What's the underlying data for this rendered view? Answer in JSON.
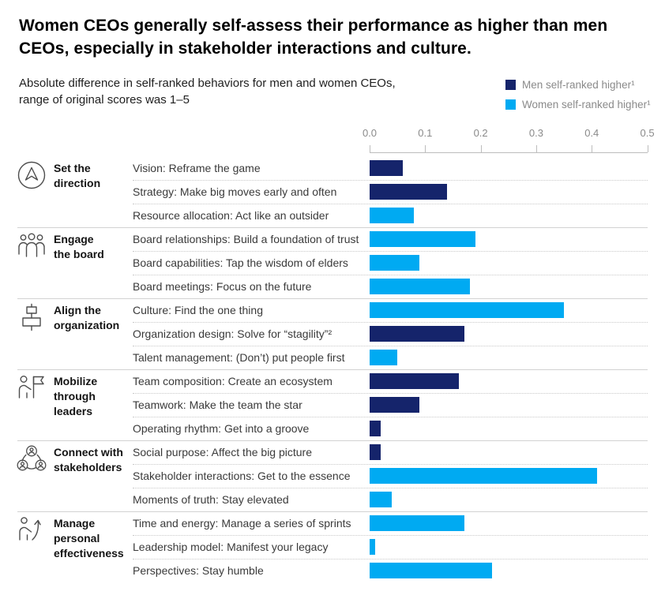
{
  "header": {
    "title": "Women CEOs generally self-assess their performance as higher than men CEOs, especially in stakeholder interactions and culture.",
    "subtitle": "Absolute difference in self-ranked behaviors for men and women CEOs,\nrange of original scores was 1–5"
  },
  "legend": [
    {
      "key": "men",
      "label": "Men self-ranked higher¹",
      "color": "#15246b"
    },
    {
      "key": "women",
      "label": "Women self-ranked higher¹",
      "color": "#00aaf2"
    }
  ],
  "colors": {
    "men": "#15246b",
    "women": "#00aaf2",
    "axis": "#bdbdbd",
    "muted_text": "#8a8a8a"
  },
  "chart_data": {
    "type": "bar",
    "orientation": "horizontal",
    "title": "Women CEOs generally self-assess their performance as higher than men CEOs, especially in stakeholder interactions and culture.",
    "xlabel": "Absolute difference in self-ranked behaviors (original score range 1–5)",
    "ylabel": "",
    "xlim": [
      0.0,
      0.5
    ],
    "x_ticks": [
      "0.0",
      "0.1",
      "0.2",
      "0.3",
      "0.4",
      "0.5"
    ],
    "grid": false,
    "legend_position": "top-right",
    "series_legend": [
      "Men self-ranked higher¹",
      "Women self-ranked higher¹"
    ],
    "groups": [
      {
        "name": "Set the\ndirection",
        "icon": "direction-compass-icon",
        "rows": [
          {
            "label": "Vision: Reframe the game",
            "value": 0.06,
            "series": "men"
          },
          {
            "label": "Strategy: Make big moves early and often",
            "value": 0.14,
            "series": "men"
          },
          {
            "label": "Resource allocation: Act like an outsider",
            "value": 0.08,
            "series": "women"
          }
        ]
      },
      {
        "name": "Engage\nthe board",
        "icon": "board-people-icon",
        "rows": [
          {
            "label": "Board relationships: Build a foundation of trust",
            "value": 0.19,
            "series": "women"
          },
          {
            "label": "Board capabilities: Tap the wisdom of elders",
            "value": 0.09,
            "series": "women"
          },
          {
            "label": "Board meetings: Focus on the future",
            "value": 0.18,
            "series": "women"
          }
        ]
      },
      {
        "name": "Align the\norganization",
        "icon": "org-chart-icon",
        "rows": [
          {
            "label": "Culture: Find the one thing",
            "value": 0.35,
            "series": "women"
          },
          {
            "label": "Organization design: Solve for “stagility”²",
            "value": 0.17,
            "series": "men"
          },
          {
            "label": "Talent management: (Don’t) put people first",
            "value": 0.05,
            "series": "women"
          }
        ]
      },
      {
        "name": "Mobilize\nthrough\nleaders",
        "icon": "leader-flag-icon",
        "rows": [
          {
            "label": "Team composition: Create an ecosystem",
            "value": 0.16,
            "series": "men"
          },
          {
            "label": "Teamwork: Make the team the star",
            "value": 0.09,
            "series": "men"
          },
          {
            "label": "Operating rhythm: Get into a groove",
            "value": 0.02,
            "series": "men"
          }
        ]
      },
      {
        "name": "Connect with\nstakeholders",
        "icon": "stakeholder-network-icon",
        "rows": [
          {
            "label": "Social purpose: Affect the big picture",
            "value": 0.02,
            "series": "men"
          },
          {
            "label": "Stakeholder interactions: Get to the essence",
            "value": 0.41,
            "series": "women"
          },
          {
            "label": "Moments of truth: Stay elevated",
            "value": 0.04,
            "series": "women"
          }
        ]
      },
      {
        "name": "Manage\npersonal\neffectiveness",
        "icon": "personal-growth-icon",
        "rows": [
          {
            "label": "Time and energy: Manage a series of sprints",
            "value": 0.17,
            "series": "women"
          },
          {
            "label": "Leadership model: Manifest your legacy",
            "value": 0.01,
            "series": "women"
          },
          {
            "label": "Perspectives: Stay humble",
            "value": 0.22,
            "series": "women"
          }
        ]
      }
    ]
  }
}
